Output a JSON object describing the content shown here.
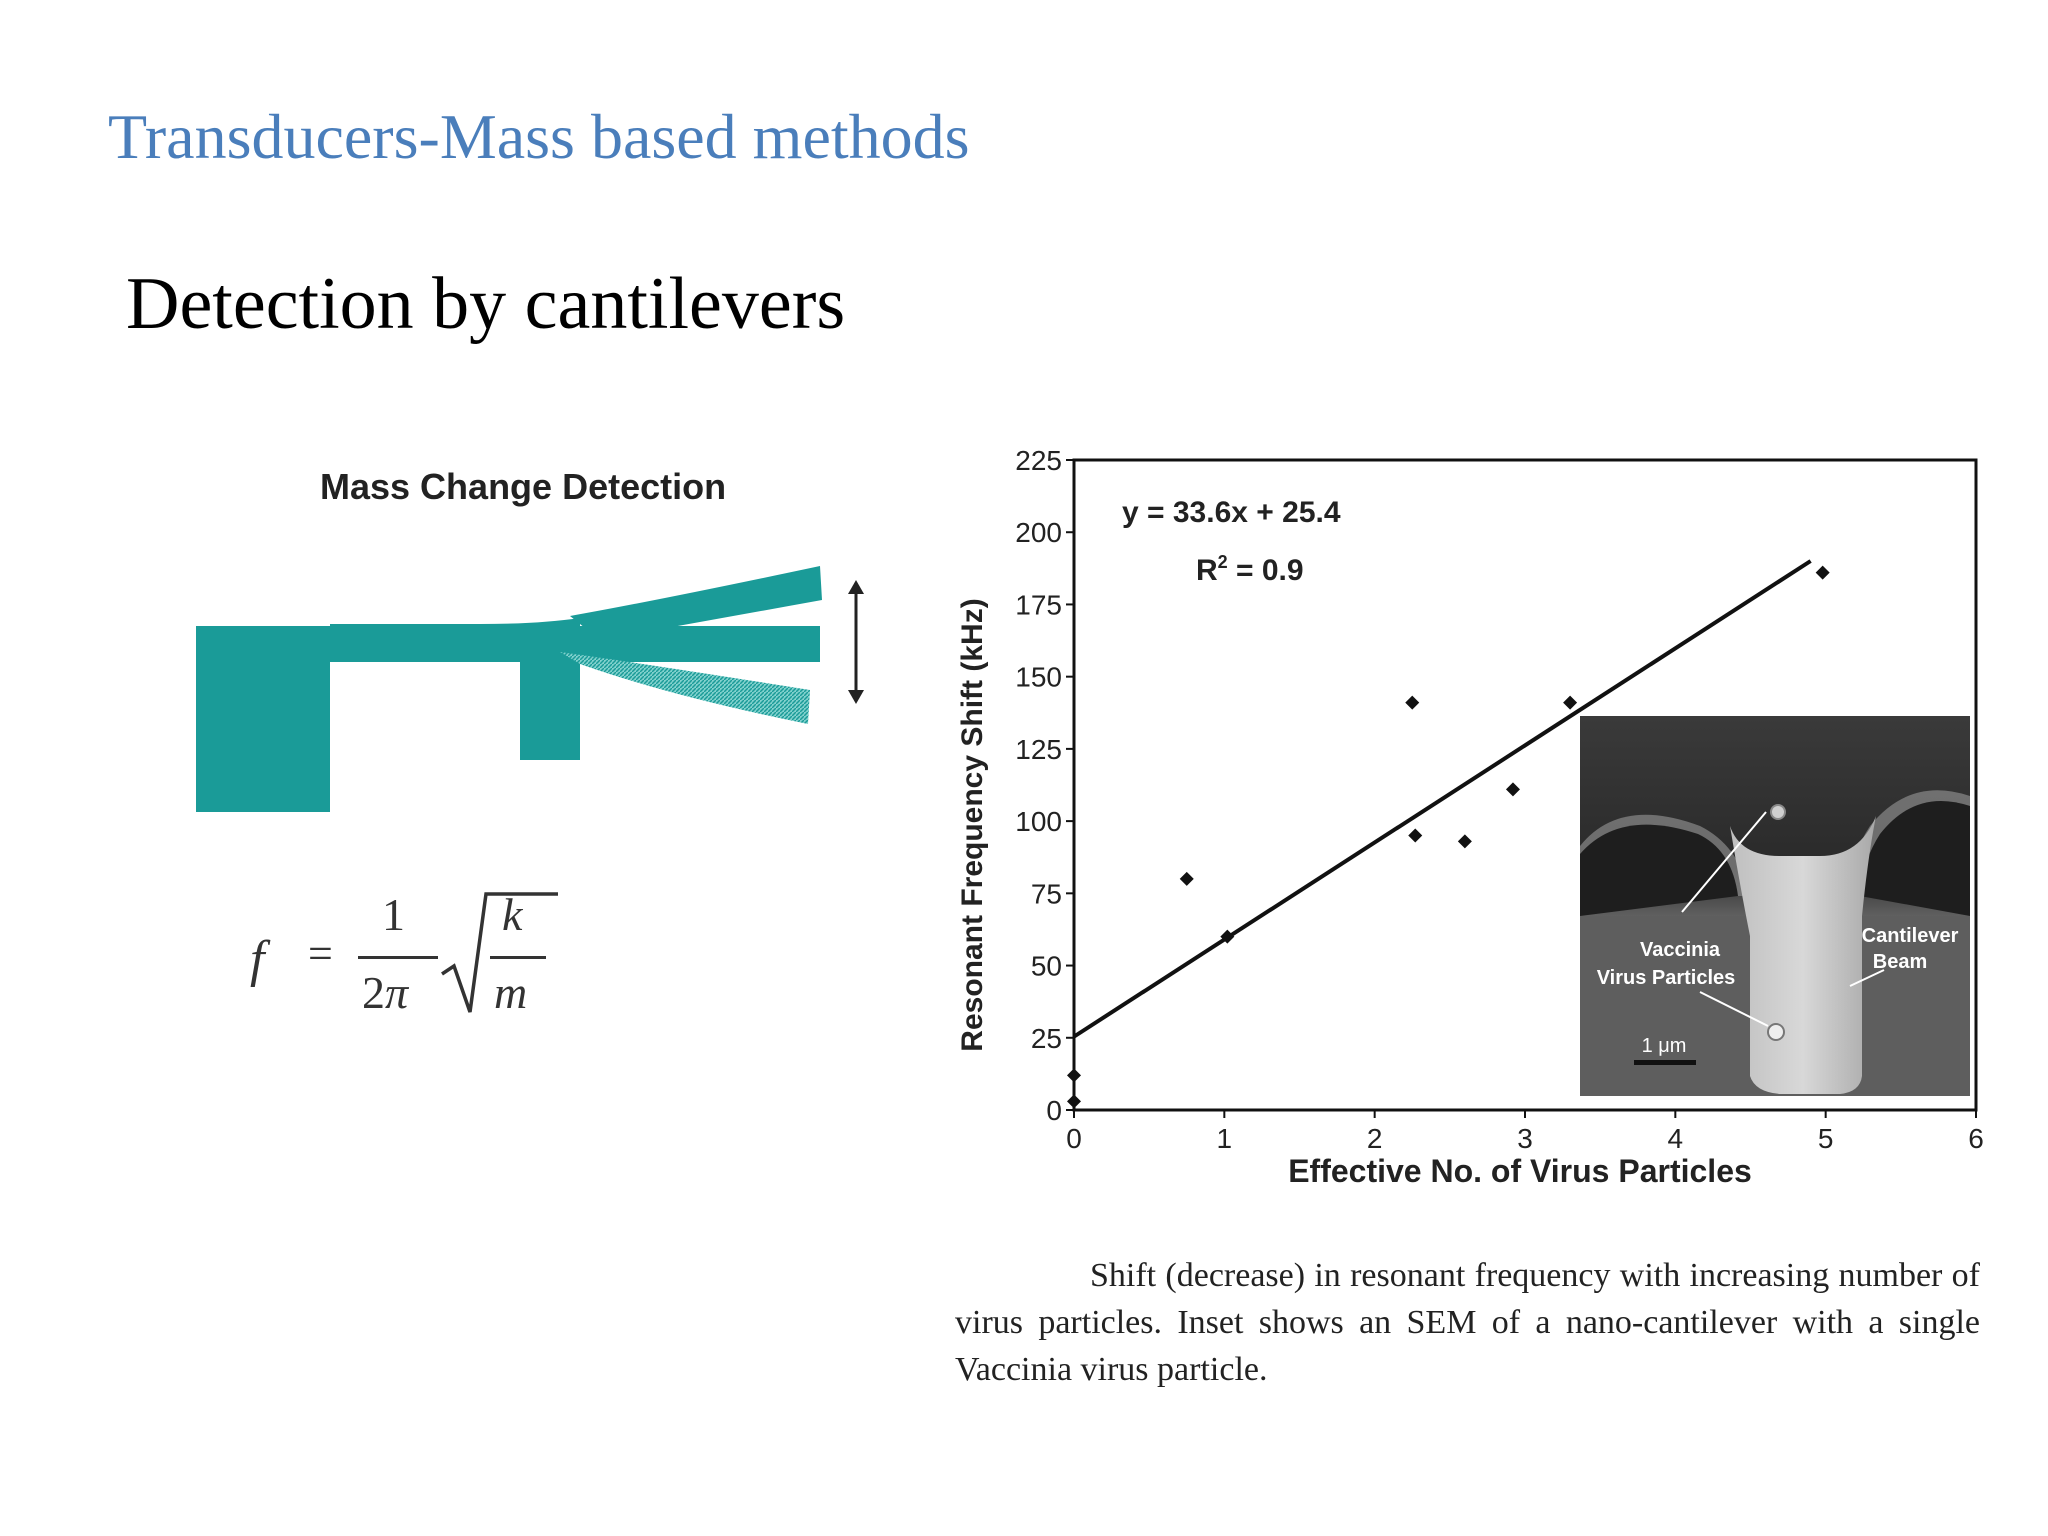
{
  "slide": {
    "title": "Transducers-Mass based methods",
    "subtitle": "Detection by cantilevers"
  },
  "diagram": {
    "title": "Mass Change Detection",
    "cantilever_color": "#1a9b98"
  },
  "formula": {
    "lhs": "f",
    "equals": "=",
    "numerator": "1",
    "denominator": "2",
    "pi": "π",
    "k": "k",
    "m": "m"
  },
  "chart_data": {
    "type": "scatter",
    "xlabel": "Effective No. of Virus Particles",
    "ylabel": "Resonant Frequency Shift (kHz)",
    "xlim": [
      0,
      6
    ],
    "ylim": [
      0,
      225
    ],
    "x_ticks": [
      0,
      1,
      2,
      3,
      4,
      5,
      6
    ],
    "y_ticks": [
      0,
      25,
      50,
      75,
      100,
      125,
      150,
      175,
      200,
      225
    ],
    "points": [
      {
        "x": 0,
        "y": 3
      },
      {
        "x": 0,
        "y": 12
      },
      {
        "x": 0.75,
        "y": 80
      },
      {
        "x": 1.02,
        "y": 60
      },
      {
        "x": 2.25,
        "y": 141
      },
      {
        "x": 2.27,
        "y": 95
      },
      {
        "x": 2.6,
        "y": 93
      },
      {
        "x": 2.92,
        "y": 111
      },
      {
        "x": 3.3,
        "y": 141
      },
      {
        "x": 4.98,
        "y": 186
      }
    ],
    "fit": {
      "slope": 33.6,
      "intercept": 25.4,
      "x_range": [
        0,
        4.9
      ]
    },
    "equation_text": "y = 33.6x + 25.4",
    "r2_text": "R",
    "r2_sup": "2",
    "r2_value": " = 0.9",
    "legend": "none",
    "grid": false
  },
  "inset": {
    "label_virus_line1": "Vaccinia",
    "label_virus_line2": "Virus Particles",
    "label_beam_line1": "Cantilever",
    "label_beam_line2": "Beam",
    "scale_bar": "1 μm"
  },
  "caption": "Shift (decrease) in resonant frequency with increasing number of virus particles. Inset shows an SEM of a nano-cantilever with a single Vaccinia virus particle."
}
